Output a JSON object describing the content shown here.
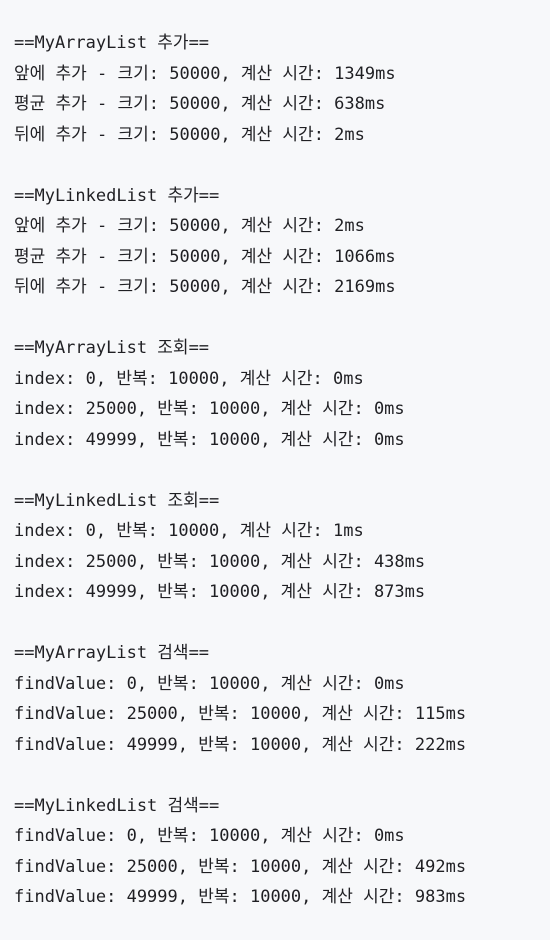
{
  "console": {
    "sections": [
      {
        "header": "==MyArrayList 추가==",
        "lines": [
          "앞에 추가 - 크기: 50000, 계산 시간: 1349ms",
          "평균 추가 - 크기: 50000, 계산 시간: 638ms",
          "뒤에 추가 - 크기: 50000, 계산 시간: 2ms"
        ]
      },
      {
        "header": "==MyLinkedList 추가==",
        "lines": [
          "앞에 추가 - 크기: 50000, 계산 시간: 2ms",
          "평균 추가 - 크기: 50000, 계산 시간: 1066ms",
          "뒤에 추가 - 크기: 50000, 계산 시간: 2169ms"
        ]
      },
      {
        "header": "==MyArrayList 조회==",
        "lines": [
          "index: 0, 반복: 10000, 계산 시간: 0ms",
          "index: 25000, 반복: 10000, 계산 시간: 0ms",
          "index: 49999, 반복: 10000, 계산 시간: 0ms"
        ]
      },
      {
        "header": "==MyLinkedList 조회==",
        "lines": [
          "index: 0, 반복: 10000, 계산 시간: 1ms",
          "index: 25000, 반복: 10000, 계산 시간: 438ms",
          "index: 49999, 반복: 10000, 계산 시간: 873ms"
        ]
      },
      {
        "header": "==MyArrayList 검색==",
        "lines": [
          "findValue: 0, 반복: 10000, 계산 시간: 0ms",
          "findValue: 25000, 반복: 10000, 계산 시간: 115ms",
          "findValue: 49999, 반복: 10000, 계산 시간: 222ms"
        ]
      },
      {
        "header": "==MyLinkedList 검색==",
        "lines": [
          "findValue: 0, 반복: 10000, 계산 시간: 0ms",
          "findValue: 25000, 반복: 10000, 계산 시간: 492ms",
          "findValue: 49999, 반복: 10000, 계산 시간: 983ms"
        ]
      }
    ]
  }
}
